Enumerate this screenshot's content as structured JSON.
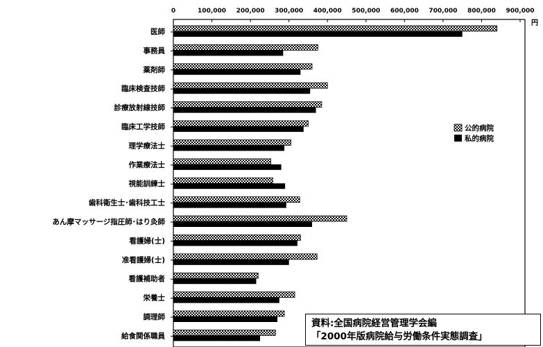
{
  "chart_data": {
    "type": "bar",
    "orientation": "horizontal",
    "unit": "円",
    "xlim": [
      0,
      900000
    ],
    "x_ticks": [
      "0",
      "100,000",
      "200,000",
      "300,000",
      "400,000",
      "500,000",
      "600,000",
      "700,000",
      "800,000",
      "900,000"
    ],
    "x_tick_values": [
      0,
      100000,
      200000,
      300000,
      400000,
      500000,
      600000,
      700000,
      800000,
      900000
    ],
    "categories": [
      "医師",
      "事務員",
      "薬剤師",
      "臨床検査技師",
      "診療放射線技師",
      "臨床工学技師",
      "理学療法士",
      "作業療法士",
      "視能訓練士",
      "歯科衛生士･歯科技工士",
      "あん摩マッサージ指圧師･はり灸師",
      "看護婦(士)",
      "准看護婦(士)",
      "看護補助者",
      "栄養士",
      "調理師",
      "給食関係職員"
    ],
    "series": [
      {
        "name": "公的病院",
        "pattern": "hatched",
        "values": [
          840000,
          375000,
          360000,
          400000,
          385000,
          350000,
          305000,
          253000,
          258000,
          328000,
          450000,
          330000,
          373000,
          220000,
          315000,
          288000,
          265000
        ]
      },
      {
        "name": "私的病院",
        "pattern": "solid",
        "values": [
          750000,
          285000,
          330000,
          355000,
          370000,
          338000,
          288000,
          280000,
          290000,
          293000,
          360000,
          322000,
          300000,
          215000,
          275000,
          270000,
          225000
        ]
      }
    ],
    "legend": "right",
    "grid": false
  },
  "source_note": {
    "line1": "資料:全国病院経営管理学会編",
    "line2": "「2000年版病院給与労働条件実態調査」"
  }
}
